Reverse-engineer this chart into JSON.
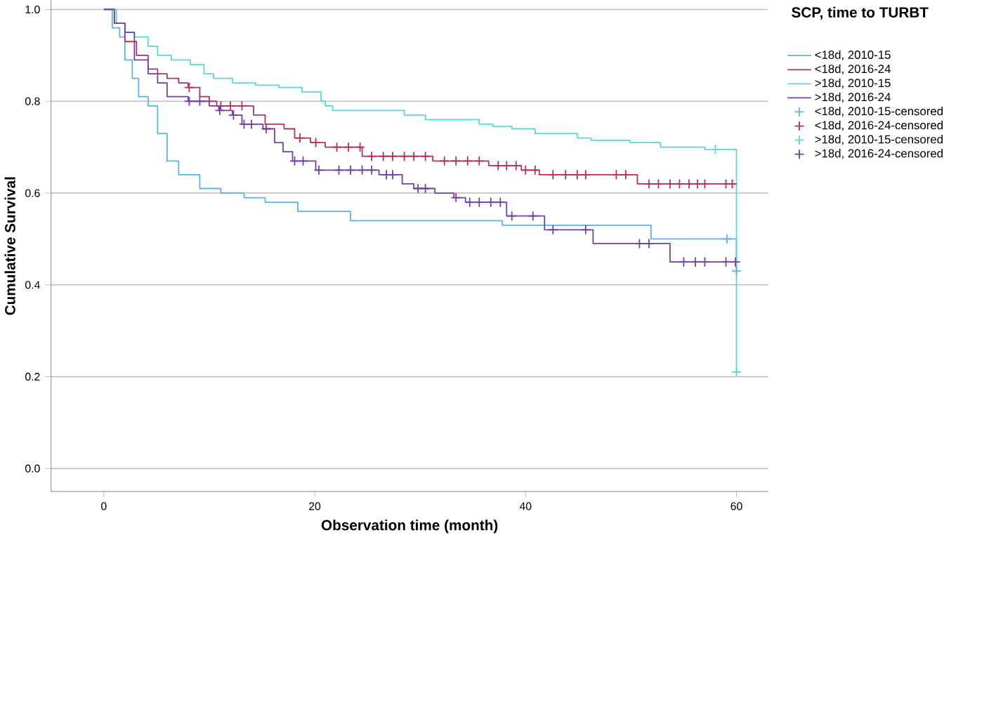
{
  "chart_data": {
    "type": "step",
    "xlabel": "Observation time (month)",
    "ylabel": "Cumulative Survival",
    "legend_title": "SCP, time to TURBT",
    "legend": "right",
    "grid": "y",
    "xlim": [
      -5,
      63
    ],
    "ylim": [
      -0.05,
      1.02
    ],
    "xticks": [
      0,
      20,
      40,
      60
    ],
    "yticks": [
      {
        "value": 0,
        "label": "0.0"
      },
      0.2,
      0.4,
      0.6,
      0.8,
      {
        "value": 1,
        "label": "1.0"
      }
    ],
    "series": [
      {
        "name": "<18d, 2010-15",
        "color": "#5ab4e5",
        "x": [
          0,
          0.8,
          1.5,
          2.0,
          2.7,
          3.3,
          4.2,
          5.1,
          6.0,
          7.1,
          9.1,
          11.1,
          13.3,
          15.3,
          18.4,
          23.4,
          37.8,
          51.9,
          60,
          60
        ],
        "values": [
          1.0,
          0.96,
          0.94,
          0.89,
          0.85,
          0.81,
          0.79,
          0.73,
          0.67,
          0.64,
          0.61,
          0.6,
          0.59,
          0.58,
          0.56,
          0.54,
          0.53,
          0.5,
          0.5,
          0.43
        ]
      },
      {
        "name": "<18d, 2016-24",
        "color": "#b03060",
        "x": [
          0,
          1.0,
          2.0,
          3.1,
          4.2,
          5.1,
          6.0,
          7.1,
          8.0,
          9.1,
          10.0,
          10.7,
          14.2,
          15.3,
          17.1,
          18.1,
          19.6,
          21.0,
          24.5,
          31.2,
          36.5,
          39.6,
          41.3,
          50.6,
          60
        ],
        "values": [
          1.0,
          0.97,
          0.93,
          0.9,
          0.87,
          0.86,
          0.85,
          0.84,
          0.83,
          0.81,
          0.8,
          0.79,
          0.77,
          0.75,
          0.74,
          0.72,
          0.71,
          0.7,
          0.68,
          0.67,
          0.66,
          0.65,
          0.64,
          0.62,
          0.62
        ]
      },
      {
        "name": ">18d, 2010-15",
        "color": "#5ad8d8",
        "x": [
          0,
          1.2,
          2.0,
          2.9,
          4.2,
          5.1,
          6.4,
          8.2,
          9.5,
          10.4,
          12.2,
          14.4,
          16.6,
          18.8,
          20.6,
          21.0,
          21.7,
          28.5,
          30.5,
          35.6,
          36.9,
          38.7,
          40.9,
          44.9,
          46.2,
          49.9,
          52.8,
          57.0,
          60,
          60
        ],
        "values": [
          1.0,
          0.97,
          0.95,
          0.94,
          0.92,
          0.9,
          0.89,
          0.88,
          0.86,
          0.85,
          0.84,
          0.835,
          0.83,
          0.82,
          0.8,
          0.79,
          0.78,
          0.77,
          0.76,
          0.75,
          0.745,
          0.74,
          0.73,
          0.72,
          0.715,
          0.71,
          0.7,
          0.695,
          0.695,
          0.21
        ]
      },
      {
        "name": ">18d, 2016-24",
        "color": "#7040a8",
        "x": [
          0,
          1.0,
          2.0,
          2.9,
          4.2,
          5.1,
          6.0,
          8.0,
          10.0,
          10.9,
          12.2,
          13.1,
          15.1,
          16.2,
          17.0,
          17.9,
          20.1,
          26.1,
          28.3,
          29.4,
          31.4,
          33.2,
          34.3,
          38.2,
          41.8,
          46.4,
          53.7,
          60
        ],
        "values": [
          1.0,
          0.97,
          0.95,
          0.89,
          0.86,
          0.84,
          0.81,
          0.8,
          0.79,
          0.78,
          0.77,
          0.75,
          0.74,
          0.71,
          0.69,
          0.67,
          0.65,
          0.64,
          0.62,
          0.61,
          0.6,
          0.59,
          0.58,
          0.55,
          0.52,
          0.49,
          0.45,
          0.45
        ]
      },
      {
        "name": "<18d, 2010-15-censored",
        "color": "#5ab4e5",
        "type": "scatter",
        "marker": "cross",
        "x": [
          59.1,
          60
        ],
        "values": [
          0.5,
          0.43
        ]
      },
      {
        "name": "<18d, 2016-24-censored",
        "color": "#b03060",
        "type": "scatter",
        "marker": "cross",
        "x": [
          8.1,
          11.1,
          12.0,
          13.1,
          18.6,
          20.1,
          22.1,
          23.2,
          24.3,
          25.4,
          26.5,
          27.4,
          28.5,
          29.4,
          30.5,
          32.3,
          33.4,
          34.5,
          35.6,
          37.4,
          38.2,
          39.1,
          40.0,
          40.9,
          42.6,
          43.8,
          44.9,
          45.7,
          48.6,
          49.5,
          51.7,
          52.6,
          53.7,
          54.6,
          55.5,
          56.3,
          57.0,
          59.0,
          59.6
        ],
        "values": [
          0.83,
          0.79,
          0.79,
          0.79,
          0.72,
          0.71,
          0.7,
          0.7,
          0.7,
          0.68,
          0.68,
          0.68,
          0.68,
          0.68,
          0.68,
          0.67,
          0.67,
          0.67,
          0.67,
          0.66,
          0.66,
          0.66,
          0.65,
          0.65,
          0.64,
          0.64,
          0.64,
          0.64,
          0.64,
          0.64,
          0.62,
          0.62,
          0.62,
          0.62,
          0.62,
          0.62,
          0.62,
          0.62,
          0.62
        ]
      },
      {
        "name": ">18d, 2010-15-censored",
        "color": "#5ad8d8",
        "type": "scatter",
        "marker": "cross",
        "x": [
          58.0,
          60
        ],
        "values": [
          0.695,
          0.21
        ]
      },
      {
        "name": ">18d, 2016-24-censored",
        "color": "#7040a8",
        "type": "scatter",
        "marker": "cross",
        "x": [
          8.1,
          9.1,
          11.0,
          12.3,
          13.3,
          14.0,
          15.4,
          18.1,
          18.9,
          20.4,
          22.3,
          23.4,
          24.5,
          25.4,
          26.8,
          27.4,
          29.8,
          30.5,
          33.4,
          34.7,
          35.6,
          36.7,
          37.6,
          38.7,
          40.7,
          42.6,
          45.7,
          50.8,
          51.7,
          55.0,
          56.1,
          57.0,
          59.0,
          59.9
        ],
        "values": [
          0.8,
          0.8,
          0.78,
          0.77,
          0.75,
          0.75,
          0.74,
          0.67,
          0.67,
          0.65,
          0.65,
          0.65,
          0.65,
          0.65,
          0.64,
          0.64,
          0.61,
          0.61,
          0.59,
          0.58,
          0.58,
          0.58,
          0.58,
          0.55,
          0.55,
          0.52,
          0.52,
          0.49,
          0.49,
          0.45,
          0.45,
          0.45,
          0.45,
          0.45
        ]
      }
    ]
  }
}
